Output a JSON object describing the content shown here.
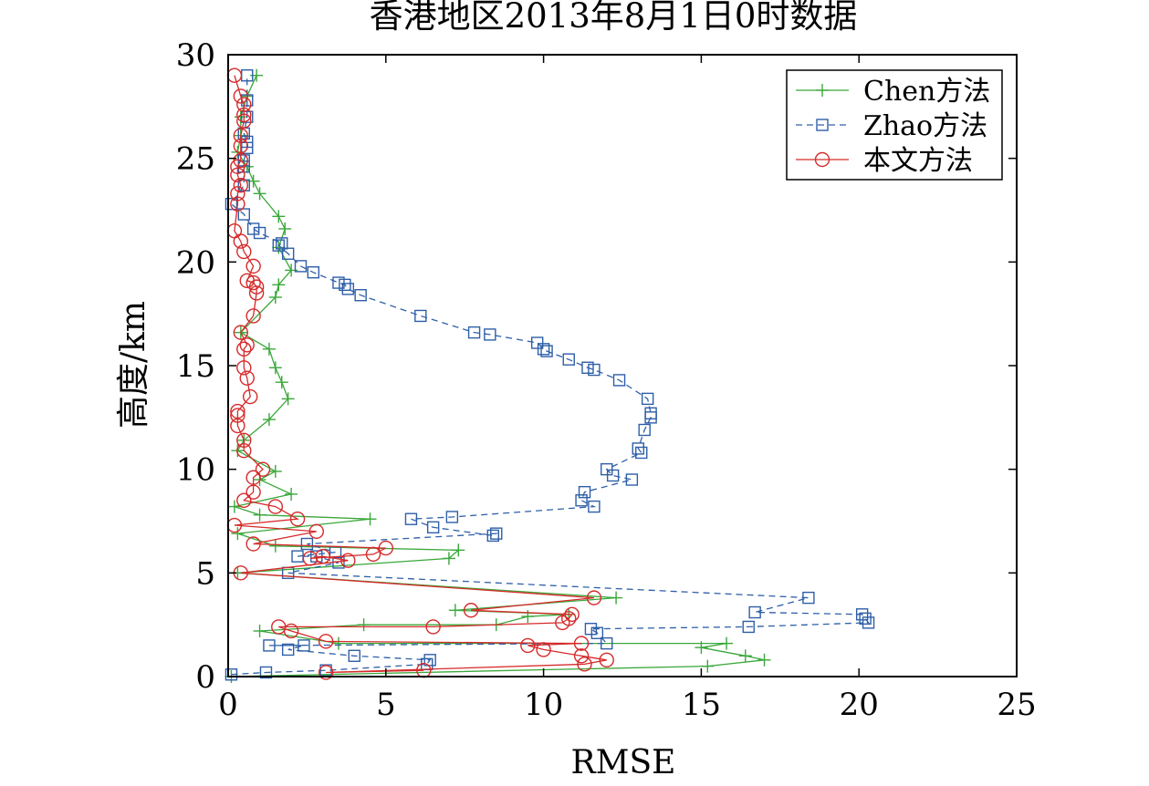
{
  "chart_data": {
    "type": "line",
    "title": "香港地区2013年8月1日0时数据",
    "xlabel": "RMSE",
    "ylabel": "高度/km",
    "xlim": [
      0,
      25
    ],
    "ylim": [
      0,
      30
    ],
    "xticks": [
      "0",
      "5",
      "10",
      "15",
      "20",
      "25"
    ],
    "yticks": [
      "0",
      "5",
      "10",
      "15",
      "20",
      "25",
      "30"
    ],
    "grid": false,
    "legend_position": "top-right",
    "series": [
      {
        "name": "Chen方法",
        "color": "#3aa83a",
        "linestyle": "solid",
        "marker": "plus",
        "points": [
          [
            0.1,
            0.0
          ],
          [
            15.2,
            0.5
          ],
          [
            17.0,
            0.8
          ],
          [
            16.4,
            1.0
          ],
          [
            15.0,
            1.4
          ],
          [
            15.8,
            1.6
          ],
          [
            3.5,
            1.6
          ],
          [
            1.0,
            2.2
          ],
          [
            4.3,
            2.5
          ],
          [
            8.5,
            2.5
          ],
          [
            9.5,
            2.9
          ],
          [
            10.8,
            3.0
          ],
          [
            7.2,
            3.2
          ],
          [
            12.3,
            3.8
          ],
          [
            0.3,
            5.0
          ],
          [
            7.0,
            5.7
          ],
          [
            7.3,
            6.1
          ],
          [
            1.5,
            6.3
          ],
          [
            0.3,
            6.9
          ],
          [
            4.5,
            7.6
          ],
          [
            1.0,
            7.8
          ],
          [
            0.2,
            8.2
          ],
          [
            2.0,
            8.8
          ],
          [
            1.0,
            9.5
          ],
          [
            1.5,
            9.9
          ],
          [
            0.3,
            10.9
          ],
          [
            0.5,
            11.4
          ],
          [
            1.3,
            12.4
          ],
          [
            1.9,
            13.4
          ],
          [
            1.7,
            14.2
          ],
          [
            1.5,
            14.9
          ],
          [
            1.3,
            15.8
          ],
          [
            0.4,
            16.6
          ],
          [
            1.5,
            18.3
          ],
          [
            1.6,
            18.9
          ],
          [
            2.0,
            19.6
          ],
          [
            1.6,
            20.7
          ],
          [
            1.8,
            21.6
          ],
          [
            1.6,
            22.2
          ],
          [
            1.0,
            23.3
          ],
          [
            0.8,
            23.9
          ],
          [
            0.6,
            24.6
          ],
          [
            0.3,
            25.3
          ],
          [
            0.4,
            26.1
          ],
          [
            0.4,
            27.0
          ],
          [
            0.6,
            28.0
          ],
          [
            0.9,
            29.0
          ]
        ]
      },
      {
        "name": "Zhao方法",
        "color": "#2e5fa8",
        "linestyle": "dashed",
        "marker": "square",
        "points": [
          [
            0.1,
            0.1
          ],
          [
            1.2,
            0.2
          ],
          [
            3.1,
            0.3
          ],
          [
            6.3,
            0.6
          ],
          [
            6.4,
            0.8
          ],
          [
            4.0,
            1.0
          ],
          [
            1.9,
            1.3
          ],
          [
            2.4,
            1.5
          ],
          [
            1.3,
            1.5
          ],
          [
            12.0,
            1.6
          ],
          [
            11.7,
            2.1
          ],
          [
            11.5,
            2.3
          ],
          [
            16.5,
            2.4
          ],
          [
            20.3,
            2.6
          ],
          [
            20.2,
            2.8
          ],
          [
            20.1,
            3.0
          ],
          [
            16.7,
            3.1
          ],
          [
            18.4,
            3.8
          ],
          [
            1.9,
            5.0
          ],
          [
            3.5,
            5.5
          ],
          [
            2.8,
            5.8
          ],
          [
            2.2,
            5.8
          ],
          [
            3.4,
            6.0
          ],
          [
            2.5,
            6.4
          ],
          [
            8.5,
            6.9
          ],
          [
            8.4,
            6.8
          ],
          [
            6.5,
            7.2
          ],
          [
            5.8,
            7.6
          ],
          [
            7.1,
            7.7
          ],
          [
            11.6,
            8.2
          ],
          [
            11.2,
            8.5
          ],
          [
            11.3,
            8.9
          ],
          [
            12.8,
            9.5
          ],
          [
            12.2,
            9.7
          ],
          [
            12.0,
            10.0
          ],
          [
            13.1,
            10.8
          ],
          [
            13.0,
            11.0
          ],
          [
            13.2,
            11.9
          ],
          [
            13.4,
            12.5
          ],
          [
            13.4,
            12.7
          ],
          [
            13.3,
            13.4
          ],
          [
            12.4,
            14.3
          ],
          [
            11.6,
            14.8
          ],
          [
            11.4,
            14.9
          ],
          [
            10.8,
            15.3
          ],
          [
            10.1,
            15.7
          ],
          [
            10.0,
            15.8
          ],
          [
            9.8,
            16.1
          ],
          [
            8.3,
            16.5
          ],
          [
            7.8,
            16.6
          ],
          [
            6.1,
            17.4
          ],
          [
            4.2,
            18.4
          ],
          [
            3.8,
            18.7
          ],
          [
            3.7,
            18.9
          ],
          [
            3.5,
            19.0
          ],
          [
            2.7,
            19.5
          ],
          [
            2.3,
            19.8
          ],
          [
            1.9,
            20.4
          ],
          [
            1.6,
            20.8
          ],
          [
            1.7,
            20.9
          ],
          [
            1.0,
            21.4
          ],
          [
            0.8,
            21.6
          ],
          [
            0.5,
            22.3
          ],
          [
            0.1,
            22.8
          ],
          [
            0.5,
            23.7
          ],
          [
            0.5,
            24.6
          ],
          [
            0.5,
            24.9
          ],
          [
            0.6,
            25.5
          ],
          [
            0.6,
            25.8
          ],
          [
            0.5,
            26.2
          ],
          [
            0.6,
            27.0
          ],
          [
            0.6,
            27.8
          ],
          [
            0.6,
            29.0
          ]
        ]
      },
      {
        "name": "本文方法",
        "color": "#d62a2a",
        "linestyle": "solid",
        "marker": "circle",
        "points": [
          [
            6.2,
            0.3
          ],
          [
            3.1,
            0.2
          ],
          [
            11.3,
            0.6
          ],
          [
            12.0,
            0.8
          ],
          [
            11.2,
            1.0
          ],
          [
            10.0,
            1.3
          ],
          [
            9.5,
            1.5
          ],
          [
            11.2,
            1.6
          ],
          [
            3.1,
            1.7
          ],
          [
            2.0,
            2.2
          ],
          [
            1.6,
            2.4
          ],
          [
            6.5,
            2.4
          ],
          [
            10.6,
            2.6
          ],
          [
            10.8,
            2.8
          ],
          [
            10.9,
            3.0
          ],
          [
            7.7,
            3.2
          ],
          [
            11.6,
            3.8
          ],
          [
            0.4,
            5.0
          ],
          [
            3.8,
            5.6
          ],
          [
            3.0,
            5.8
          ],
          [
            2.6,
            5.7
          ],
          [
            4.6,
            5.9
          ],
          [
            5.0,
            6.2
          ],
          [
            0.8,
            6.4
          ],
          [
            2.8,
            7.0
          ],
          [
            0.2,
            7.3
          ],
          [
            2.2,
            7.6
          ],
          [
            1.5,
            8.2
          ],
          [
            0.5,
            8.5
          ],
          [
            0.8,
            8.9
          ],
          [
            0.8,
            9.6
          ],
          [
            1.1,
            10.0
          ],
          [
            0.5,
            10.9
          ],
          [
            0.5,
            11.4
          ],
          [
            0.3,
            12.1
          ],
          [
            0.3,
            12.6
          ],
          [
            0.3,
            12.8
          ],
          [
            0.7,
            13.5
          ],
          [
            0.6,
            14.4
          ],
          [
            0.5,
            14.9
          ],
          [
            0.5,
            15.8
          ],
          [
            0.6,
            16.0
          ],
          [
            0.4,
            16.6
          ],
          [
            0.8,
            17.4
          ],
          [
            0.9,
            18.5
          ],
          [
            0.9,
            18.8
          ],
          [
            0.8,
            19.0
          ],
          [
            0.6,
            19.1
          ],
          [
            0.8,
            19.8
          ],
          [
            0.5,
            20.5
          ],
          [
            0.4,
            21.0
          ],
          [
            0.2,
            21.5
          ],
          [
            0.3,
            22.8
          ],
          [
            0.3,
            23.3
          ],
          [
            0.4,
            23.7
          ],
          [
            0.3,
            24.2
          ],
          [
            0.3,
            24.6
          ],
          [
            0.4,
            24.9
          ],
          [
            0.4,
            25.6
          ],
          [
            0.4,
            26.1
          ],
          [
            0.5,
            26.8
          ],
          [
            0.5,
            27.1
          ],
          [
            0.5,
            27.6
          ],
          [
            0.4,
            28.0
          ],
          [
            0.2,
            29.0
          ]
        ]
      }
    ]
  }
}
